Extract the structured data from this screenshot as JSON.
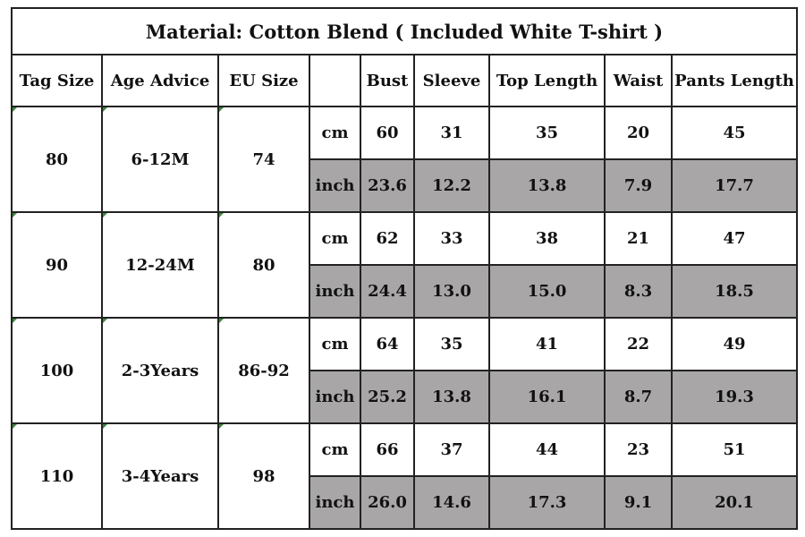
{
  "title": "Material: Cotton Blend ( Included White T-shirt )",
  "headers": [
    "Tag Size",
    "Age Advice",
    "EU Size",
    "",
    "Bust",
    "Sleeve",
    "Top Length",
    "Waist",
    "Pants Length"
  ],
  "colors": {
    "inch_row_bg": "#a8a6a6",
    "border": "#222222",
    "text": "#111111"
  },
  "sizes": [
    {
      "tag": "80",
      "age": "6-12M",
      "eu": "74",
      "cm": {
        "unit": "cm",
        "bust": "60",
        "sleeve": "31",
        "top": "35",
        "waist": "20",
        "pants": "45"
      },
      "inch": {
        "unit": "inch",
        "bust": "23.6",
        "sleeve": "12.2",
        "top": "13.8",
        "waist": "7.9",
        "pants": "17.7"
      }
    },
    {
      "tag": "90",
      "age": "12-24M",
      "eu": "80",
      "cm": {
        "unit": "cm",
        "bust": "62",
        "sleeve": "33",
        "top": "38",
        "waist": "21",
        "pants": "47"
      },
      "inch": {
        "unit": "inch",
        "bust": "24.4",
        "sleeve": "13.0",
        "top": "15.0",
        "waist": "8.3",
        "pants": "18.5"
      }
    },
    {
      "tag": "100",
      "age": "2-3Years",
      "eu": "86-92",
      "cm": {
        "unit": "cm",
        "bust": "64",
        "sleeve": "35",
        "top": "41",
        "waist": "22",
        "pants": "49"
      },
      "inch": {
        "unit": "inch",
        "bust": "25.2",
        "sleeve": "13.8",
        "top": "16.1",
        "waist": "8.7",
        "pants": "19.3"
      }
    },
    {
      "tag": "110",
      "age": "3-4Years",
      "eu": "98",
      "cm": {
        "unit": "cm",
        "bust": "66",
        "sleeve": "37",
        "top": "44",
        "waist": "23",
        "pants": "51"
      },
      "inch": {
        "unit": "inch",
        "bust": "26.0",
        "sleeve": "14.6",
        "top": "17.3",
        "waist": "9.1",
        "pants": "20.1"
      }
    }
  ]
}
